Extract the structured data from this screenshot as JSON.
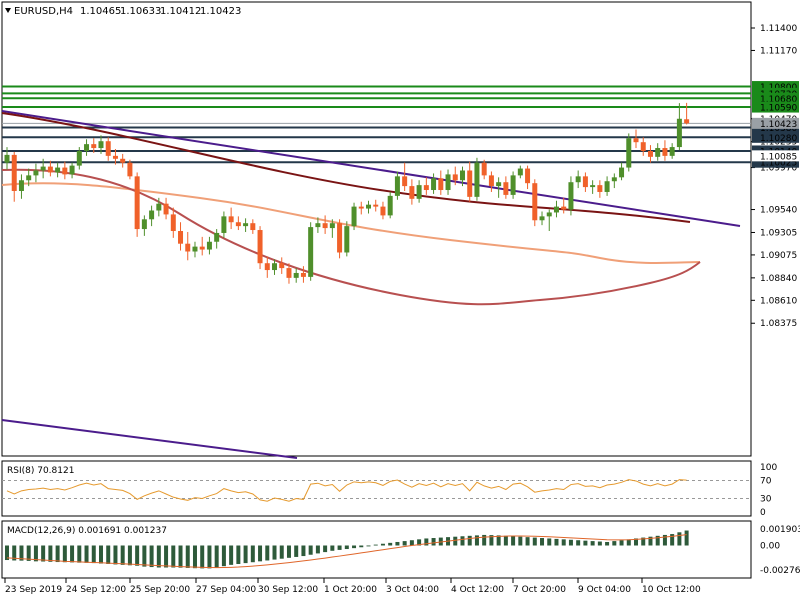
{
  "chart_data": {
    "type": "candlestick",
    "header": {
      "symbol_timeframe": "EURUSD,H4",
      "open": "1.10465",
      "high": "1.10633",
      "low": "1.10412",
      "close": "1.10423"
    },
    "price_ticks": [
      "1.11400",
      "1.11170",
      "1.10470",
      "1.10235",
      "1.09970",
      "1.09540",
      "1.09305",
      "1.09075",
      "1.08840",
      "1.08610",
      "1.08375"
    ],
    "levels": [
      {
        "value": 1.108,
        "label": "1.10800",
        "color": "#1a8a1a",
        "style": "box"
      },
      {
        "value": 1.1073,
        "label": "1.10730",
        "color": "#1a8a1a",
        "style": "box"
      },
      {
        "value": 1.1068,
        "label": "1.10680",
        "color": "#1a8a1a",
        "style": "box"
      },
      {
        "value": 1.1059,
        "label": "1.10590",
        "color": "#1a8a1a",
        "style": "box"
      },
      {
        "value": 1.1038,
        "label": "1.10380",
        "color": "#24384a",
        "style": "box"
      },
      {
        "value": 1.1028,
        "label": "1.10280",
        "color": "#24384a",
        "style": "box"
      },
      {
        "value": 1.1014,
        "label": "1.10140",
        "color": "#24384a",
        "style": "box"
      },
      {
        "value": 1.10025,
        "label": "1.10025",
        "color": "#24384a",
        "style": "box"
      },
      {
        "value": 1.10423,
        "label": "1.10423",
        "color": "#9aa0a6",
        "style": "current"
      },
      {
        "value": 1.1009,
        "label": "1.10085",
        "color": "#cccccc",
        "style": "plain"
      }
    ],
    "x_labels": [
      "23 Sep 2019",
      "24 Sep 12:00",
      "25 Sep 20:00",
      "27 Sep 04:00",
      "30 Sep 12:00",
      "1 Oct 20:00",
      "3 Oct 04:00",
      "4 Oct 12:00",
      "7 Oct 20:00",
      "9 Oct 04:00",
      "10 Oct 12:00"
    ],
    "candles": [
      [
        1.1002,
        1.1018,
        1.0995,
        1.101
      ],
      [
        1.101,
        1.1013,
        1.0962,
        1.0973
      ],
      [
        1.0973,
        1.099,
        1.0965,
        1.0984
      ],
      [
        1.0984,
        1.0996,
        1.0978,
        1.0989
      ],
      [
        1.0989,
        1.1001,
        1.0982,
        1.0994
      ],
      [
        1.0994,
        1.1006,
        1.0986,
        1.0998
      ],
      [
        1.0998,
        1.1004,
        1.0988,
        1.0992
      ],
      [
        1.0992,
        1.1002,
        1.0987,
        1.0997
      ],
      [
        1.0997,
        1.1003,
        1.0985,
        1.099
      ],
      [
        1.099,
        1.1002,
        1.0986,
        1.0999
      ],
      [
        1.0999,
        1.1018,
        1.0995,
        1.1014
      ],
      [
        1.1014,
        1.1026,
        1.1009,
        1.1021
      ],
      [
        1.1021,
        1.1027,
        1.1012,
        1.1017
      ],
      [
        1.1017,
        1.103,
        1.1011,
        1.1024
      ],
      [
        1.1024,
        1.1028,
        1.1004,
        1.1009
      ],
      [
        1.1009,
        1.1016,
        1.1,
        1.1006
      ],
      [
        1.1006,
        1.1011,
        1.0997,
        1.1002
      ],
      [
        1.1002,
        1.1005,
        1.0985,
        1.0988
      ],
      [
        1.0988,
        1.0992,
        1.0926,
        1.0934
      ],
      [
        1.0934,
        1.0948,
        1.0927,
        1.0944
      ],
      [
        1.0944,
        1.0958,
        1.0937,
        1.0953
      ],
      [
        1.0953,
        1.0966,
        1.0947,
        1.096
      ],
      [
        1.096,
        1.0966,
        1.0944,
        1.0949
      ],
      [
        1.0949,
        1.0956,
        1.0925,
        1.0932
      ],
      [
        1.0932,
        1.0941,
        1.0912,
        1.0919
      ],
      [
        1.0919,
        1.0931,
        1.0902,
        1.0911
      ],
      [
        1.0911,
        1.0921,
        1.0905,
        1.0916
      ],
      [
        1.0916,
        1.0926,
        1.0907,
        1.0913
      ],
      [
        1.0913,
        1.0926,
        1.0908,
        1.0921
      ],
      [
        1.0921,
        1.0934,
        1.0914,
        1.093
      ],
      [
        1.093,
        1.0952,
        1.0925,
        1.0947
      ],
      [
        1.0947,
        1.0956,
        1.0934,
        1.0941
      ],
      [
        1.0941,
        1.0947,
        1.0933,
        1.0937
      ],
      [
        1.0937,
        1.0945,
        1.0931,
        1.094
      ],
      [
        1.094,
        1.0944,
        1.0929,
        1.0933
      ],
      [
        1.0933,
        1.0937,
        1.0893,
        1.0899
      ],
      [
        1.0899,
        1.0906,
        1.0884,
        1.0892
      ],
      [
        1.0892,
        1.0903,
        1.0887,
        1.0899
      ],
      [
        1.0899,
        1.0905,
        1.0888,
        1.0894
      ],
      [
        1.0894,
        1.0899,
        1.0878,
        1.0884
      ],
      [
        1.0884,
        1.0894,
        1.0879,
        1.0889
      ],
      [
        1.0889,
        1.0896,
        1.0879,
        1.0885
      ],
      [
        1.0885,
        1.0941,
        1.0881,
        1.0936
      ],
      [
        1.0936,
        1.0946,
        1.093,
        1.094
      ],
      [
        1.094,
        1.0948,
        1.0929,
        1.0935
      ],
      [
        1.0935,
        1.0944,
        1.0925,
        1.094
      ],
      [
        1.094,
        1.0944,
        1.0904,
        1.091
      ],
      [
        1.091,
        1.0942,
        1.0906,
        1.0937
      ],
      [
        1.0937,
        1.0961,
        1.0933,
        1.0957
      ],
      [
        1.0957,
        1.0962,
        1.0949,
        1.0955
      ],
      [
        1.0955,
        1.0963,
        1.095,
        1.0959
      ],
      [
        1.0959,
        1.0964,
        1.0952,
        1.0957
      ],
      [
        1.0957,
        1.0962,
        1.0944,
        1.0948
      ],
      [
        1.0948,
        1.0972,
        1.0945,
        1.0968
      ],
      [
        1.0968,
        1.0993,
        1.0964,
        1.0988
      ],
      [
        1.0988,
        1.1002,
        1.0973,
        1.0978
      ],
      [
        1.0978,
        1.0985,
        1.0959,
        1.0965
      ],
      [
        1.0965,
        1.0984,
        1.0961,
        1.0979
      ],
      [
        1.0979,
        1.0987,
        1.0969,
        1.0974
      ],
      [
        1.0974,
        1.0991,
        1.097,
        1.0986
      ],
      [
        1.0986,
        1.0994,
        1.0969,
        1.0974
      ],
      [
        1.0974,
        1.0995,
        1.0969,
        1.099
      ],
      [
        1.099,
        1.0998,
        1.0979,
        1.0984
      ],
      [
        1.0984,
        1.0998,
        1.0978,
        1.0994
      ],
      [
        1.0994,
        1.1003,
        1.0962,
        1.0967
      ],
      [
        1.0967,
        1.1007,
        1.0963,
        1.1002
      ],
      [
        1.1002,
        1.1005,
        1.0985,
        1.0989
      ],
      [
        1.0989,
        1.0993,
        1.0972,
        1.0978
      ],
      [
        1.0978,
        1.0987,
        1.0966,
        1.0982
      ],
      [
        1.0982,
        1.0988,
        1.0965,
        1.0969
      ],
      [
        1.0969,
        1.0993,
        1.0965,
        1.0989
      ],
      [
        1.0989,
        1.0999,
        1.0986,
        1.0996
      ],
      [
        1.0996,
        1.0999,
        1.0975,
        1.0981
      ],
      [
        1.0981,
        1.0985,
        1.0937,
        1.0943
      ],
      [
        1.0943,
        1.0952,
        1.0938,
        1.0947
      ],
      [
        1.0947,
        1.0954,
        1.0932,
        1.0951
      ],
      [
        1.0951,
        1.0963,
        1.0946,
        1.0957
      ],
      [
        1.0957,
        1.0966,
        1.095,
        1.0954
      ],
      [
        1.0954,
        1.0988,
        1.0948,
        1.0982
      ],
      [
        1.0982,
        1.0994,
        1.0976,
        1.0988
      ],
      [
        1.0988,
        1.0992,
        1.0972,
        1.0977
      ],
      [
        1.0977,
        1.0984,
        1.097,
        1.0979
      ],
      [
        1.0979,
        1.0984,
        1.0966,
        1.0972
      ],
      [
        1.0972,
        1.0988,
        1.0968,
        1.0983
      ],
      [
        1.0983,
        1.0991,
        1.0976,
        1.0987
      ],
      [
        1.0987,
        1.1002,
        1.0984,
        1.0997
      ],
      [
        1.0997,
        1.1032,
        1.0993,
        1.1027
      ],
      [
        1.1027,
        1.1036,
        1.1017,
        1.1023
      ],
      [
        1.1023,
        1.1028,
        1.1009,
        1.1014
      ],
      [
        1.1014,
        1.102,
        1.1002,
        1.1008
      ],
      [
        1.1008,
        1.1022,
        1.1004,
        1.1017
      ],
      [
        1.1017,
        1.1025,
        1.1004,
        1.1009
      ],
      [
        1.1009,
        1.1022,
        1.1006,
        1.1018
      ],
      [
        1.1018,
        1.1063,
        1.1015,
        1.1047
      ],
      [
        1.10465,
        1.10633,
        1.10412,
        1.10423
      ]
    ],
    "rsi": {
      "label": "RSI(8) 70.8121",
      "ticks": [
        "100",
        "70",
        "30",
        "0"
      ],
      "values": [
        47,
        40,
        47,
        50,
        51,
        53,
        50,
        52,
        49,
        54,
        60,
        64,
        60,
        63,
        52,
        50,
        48,
        41,
        28,
        36,
        42,
        47,
        40,
        33,
        29,
        26,
        32,
        30,
        36,
        41,
        52,
        47,
        43,
        45,
        40,
        27,
        24,
        31,
        28,
        24,
        30,
        28,
        62,
        64,
        58,
        61,
        46,
        60,
        67,
        65,
        67,
        65,
        59,
        68,
        71,
        62,
        55,
        63,
        59,
        64,
        56,
        63,
        59,
        63,
        47,
        66,
        58,
        53,
        57,
        50,
        62,
        64,
        56,
        44,
        47,
        49,
        52,
        50,
        61,
        63,
        57,
        58,
        54,
        60,
        62,
        66,
        72,
        69,
        62,
        58,
        63,
        58,
        62,
        72,
        70.8
      ]
    },
    "macd": {
      "label": "MACD(12,26,9) 0.001691 0.001237",
      "ticks": [
        "0.001903",
        "0.00",
        "-0.002764"
      ],
      "hist": [
        -0.00165,
        -0.0017,
        -0.00172,
        -0.00175,
        -0.0018,
        -0.00182,
        -0.00185,
        -0.00188,
        -0.0019,
        -0.00192,
        -0.00195,
        -0.00197,
        -0.002,
        -0.00205,
        -0.0021,
        -0.00215,
        -0.0022,
        -0.00225,
        -0.0023,
        -0.0024,
        -0.00245,
        -0.0025,
        -0.0025,
        -0.0025,
        -0.00252,
        -0.00255,
        -0.00258,
        -0.0026,
        -0.0026,
        -0.00255,
        -0.00235,
        -0.0022,
        -0.0021,
        -0.002,
        -0.0019,
        -0.0018,
        -0.0017,
        -0.0016,
        -0.0015,
        -0.0014,
        -0.0013,
        -0.0012,
        -0.00105,
        -0.0009,
        -0.00075,
        -0.0006,
        -0.0005,
        -0.0004,
        -0.0003,
        -0.0002,
        -0.0001,
        0.0001,
        0.0002,
        0.0003,
        0.0004,
        0.0005,
        0.0006,
        0.0007,
        0.0008,
        0.00085,
        0.0009,
        0.00095,
        0.001,
        0.00105,
        0.0011,
        0.00115,
        0.0012,
        0.00118,
        0.00115,
        0.0011,
        0.00105,
        0.001,
        0.00095,
        0.0009,
        0.00085,
        0.0008,
        0.00075,
        0.0007,
        0.00065,
        0.0006,
        0.00055,
        0.0005,
        0.00045,
        0.0004,
        0.0005,
        0.0006,
        0.0007,
        0.0008,
        0.0009,
        0.001,
        0.0011,
        0.0012,
        0.0013,
        0.0015,
        0.0017
      ],
      "signal": [
        -0.0014,
        -0.00145,
        -0.0015,
        -0.00155,
        -0.0016,
        -0.00165,
        -0.0017,
        -0.00175,
        -0.0018,
        -0.00183,
        -0.00186,
        -0.0019,
        -0.00193,
        -0.00196,
        -0.002,
        -0.00204,
        -0.00208,
        -0.00212,
        -0.00216,
        -0.0022,
        -0.00224,
        -0.00228,
        -0.00232,
        -0.00236,
        -0.0024,
        -0.00243,
        -0.00246,
        -0.00248,
        -0.0025,
        -0.00251,
        -0.0025,
        -0.00248,
        -0.00245,
        -0.0024,
        -0.00234,
        -0.00227,
        -0.0022,
        -0.00212,
        -0.00203,
        -0.00194,
        -0.00185,
        -0.00175,
        -0.00165,
        -0.00154,
        -0.00143,
        -0.00131,
        -0.0012,
        -0.00108,
        -0.00096,
        -0.00084,
        -0.00072,
        -0.0006,
        -0.00048,
        -0.00036,
        -0.00024,
        -0.00012,
        0,
        0.0001,
        0.0002,
        0.0003,
        0.0004,
        0.0005,
        0.0006,
        0.0007,
        0.0008,
        0.00088,
        0.00095,
        0.001,
        0.00104,
        0.00107,
        0.00108,
        0.00108,
        0.00107,
        0.00105,
        0.00102,
        0.00099,
        0.00095,
        0.00091,
        0.00087,
        0.00082,
        0.00078,
        0.00074,
        0.0007,
        0.00066,
        0.00064,
        0.00064,
        0.00066,
        0.0007,
        0.00075,
        0.00081,
        0.00088,
        0.00096,
        0.00104,
        0.00113,
        0.00124
      ]
    }
  }
}
